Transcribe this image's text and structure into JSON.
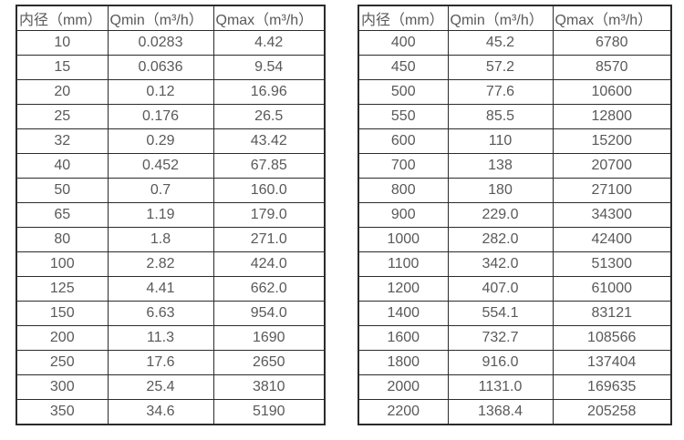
{
  "colors": {
    "border": "#2b2b2b",
    "text": "#595959",
    "background": "#ffffff"
  },
  "tables": [
    {
      "name": "flow-range-table-small-diameters",
      "headers": [
        "内径（mm）",
        "Qmin（m³/h）",
        "Qmax（m³/h）"
      ],
      "rows": [
        [
          "10",
          "0.0283",
          "4.42"
        ],
        [
          "15",
          "0.0636",
          "9.54"
        ],
        [
          "20",
          "0.12",
          "16.96"
        ],
        [
          "25",
          "0.176",
          "26.5"
        ],
        [
          "32",
          "0.29",
          "43.42"
        ],
        [
          "40",
          "0.452",
          "67.85"
        ],
        [
          "50",
          "0.7",
          "160.0"
        ],
        [
          "65",
          "1.19",
          "179.0"
        ],
        [
          "80",
          "1.8",
          "271.0"
        ],
        [
          "100",
          "2.82",
          "424.0"
        ],
        [
          "125",
          "4.41",
          "662.0"
        ],
        [
          "150",
          "6.63",
          "954.0"
        ],
        [
          "200",
          "11.3",
          "1690"
        ],
        [
          "250",
          "17.6",
          "2650"
        ],
        [
          "300",
          "25.4",
          "3810"
        ],
        [
          "350",
          "34.6",
          "5190"
        ]
      ]
    },
    {
      "name": "flow-range-table-large-diameters",
      "headers": [
        "内径（mm）",
        "Qmin（m³/h）",
        "Qmax（m³/h）"
      ],
      "rows": [
        [
          "400",
          "45.2",
          "6780"
        ],
        [
          "450",
          "57.2",
          "8570"
        ],
        [
          "500",
          "77.6",
          "10600"
        ],
        [
          "550",
          "85.5",
          "12800"
        ],
        [
          "600",
          "110",
          "15200"
        ],
        [
          "700",
          "138",
          "20700"
        ],
        [
          "800",
          "180",
          "27100"
        ],
        [
          "900",
          "229.0",
          "34300"
        ],
        [
          "1000",
          "282.0",
          "42400"
        ],
        [
          "1100",
          "342.0",
          "51300"
        ],
        [
          "1200",
          "407.0",
          "61000"
        ],
        [
          "1400",
          "554.1",
          "83121"
        ],
        [
          "1600",
          "732.7",
          "108566"
        ],
        [
          "1800",
          "916.0",
          "137404"
        ],
        [
          "2000",
          "1131.0",
          "169635"
        ],
        [
          "2200",
          "1368.4",
          "205258"
        ]
      ]
    }
  ]
}
